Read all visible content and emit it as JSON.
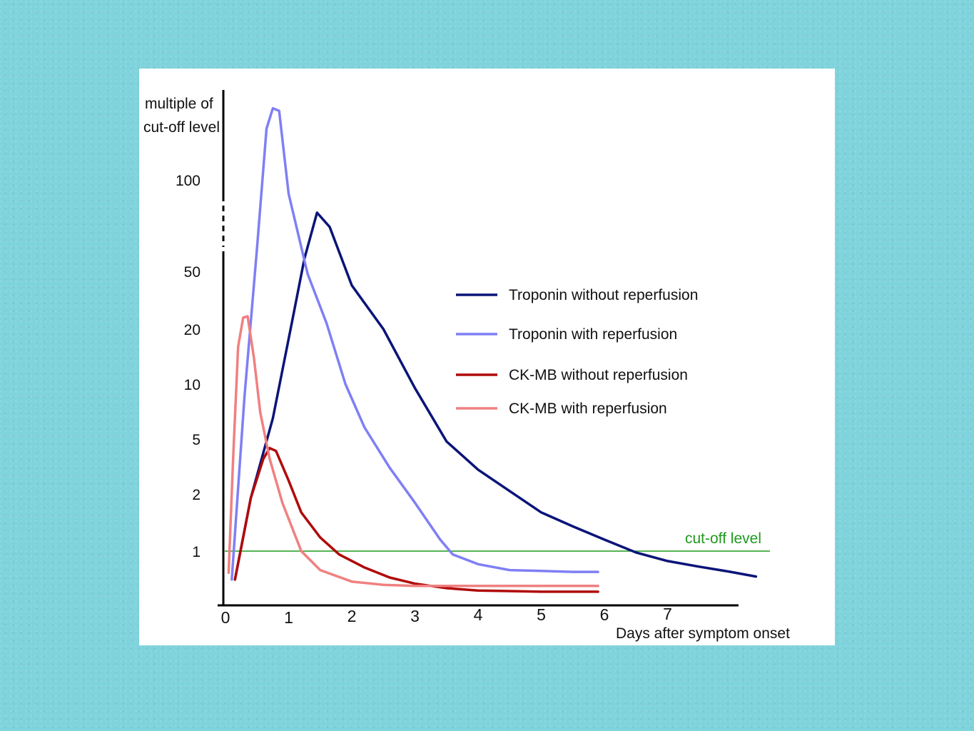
{
  "colors": {
    "background": "#7fd3dc",
    "panel": "#ffffff",
    "axis": "#000000",
    "cutoff": "#1f9a1f"
  },
  "chart_data": {
    "type": "line",
    "title": "",
    "ylabel_lines": [
      "multiple of",
      "cut-off level"
    ],
    "xlabel": "Days after symptom onset",
    "y_scale": "log",
    "y_ticks": [
      100,
      50,
      20,
      10,
      5,
      2,
      1
    ],
    "y_tick_labels": [
      "100",
      "50",
      "20",
      "10",
      "5",
      "2",
      "1"
    ],
    "x_ticks": [
      0,
      1,
      2,
      3,
      4,
      5,
      6,
      7
    ],
    "x_tick_labels": [
      "0",
      "1",
      "2",
      "3",
      "4",
      "5",
      "6",
      "7"
    ],
    "xlim": [
      0,
      8.3
    ],
    "reference_line": {
      "label": "cut-off level",
      "y": 1
    },
    "legend_position": "right",
    "series": [
      {
        "name": "Troponin without reperfusion",
        "color": "#0a1478",
        "x": [
          0.15,
          0.4,
          0.75,
          1.05,
          1.25,
          1.45,
          1.65,
          2.0,
          2.5,
          3.0,
          3.5,
          4.0,
          4.5,
          5.0,
          5.5,
          6.0,
          6.5,
          7.0,
          7.5,
          8.0,
          8.4
        ],
        "y": [
          0.65,
          1.9,
          6.5,
          22,
          55,
          78,
          70,
          40,
          20,
          9.5,
          4.8,
          3.0,
          2.1,
          1.6,
          1.35,
          1.15,
          0.98,
          0.86,
          0.79,
          0.73,
          0.68
        ]
      },
      {
        "name": "Troponin with reperfusion",
        "color": "#7f7ff5",
        "x": [
          0.1,
          0.3,
          0.5,
          0.65,
          0.75,
          0.85,
          1.0,
          1.3,
          1.6,
          1.9,
          2.2,
          2.6,
          3.0,
          3.4,
          3.6,
          4.0,
          4.5,
          5.0,
          5.5,
          5.9
        ],
        "y": [
          0.65,
          8.5,
          60,
          145,
          168,
          165,
          90,
          48,
          22,
          10,
          5.8,
          3.1,
          1.8,
          1.15,
          0.95,
          0.82,
          0.75,
          0.74,
          0.73,
          0.73
        ]
      },
      {
        "name": "CK-MB without reperfusion",
        "color": "#b00a0a",
        "x": [
          0.15,
          0.4,
          0.6,
          0.7,
          0.8,
          1.0,
          1.2,
          1.5,
          1.8,
          2.2,
          2.6,
          3.0,
          3.5,
          4.0,
          4.5,
          5.0,
          5.5,
          5.9
        ],
        "y": [
          0.65,
          1.9,
          3.6,
          4.3,
          4.1,
          2.5,
          1.6,
          1.18,
          0.95,
          0.78,
          0.67,
          0.61,
          0.57,
          0.55,
          0.545,
          0.54,
          0.54,
          0.54
        ]
      },
      {
        "name": "CK-MB with reperfusion",
        "color": "#f08080",
        "x": [
          0.05,
          0.12,
          0.2,
          0.28,
          0.35,
          0.45,
          0.55,
          0.7,
          0.9,
          1.2,
          1.5,
          2.0,
          2.5,
          3.0,
          3.5,
          4.0,
          4.5,
          5.0,
          5.5,
          5.9
        ],
        "y": [
          0.72,
          3.5,
          16,
          24,
          24.5,
          14,
          7,
          3.6,
          1.8,
          1.0,
          0.75,
          0.63,
          0.6,
          0.59,
          0.59,
          0.59,
          0.59,
          0.59,
          0.59,
          0.59
        ]
      }
    ]
  }
}
